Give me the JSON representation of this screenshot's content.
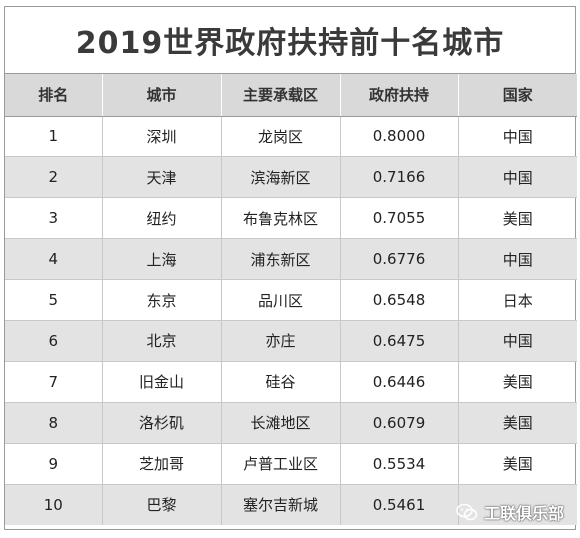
{
  "title": "2019世界政府扶持前十名城市",
  "headers": [
    "排名",
    "城市",
    "主要承载区",
    "政府扶持",
    "国家"
  ],
  "rows": [
    [
      "1",
      "深圳",
      "龙岗区",
      "0.8000",
      "中国"
    ],
    [
      "2",
      "天津",
      "滨海新区",
      "0.7166",
      "中国"
    ],
    [
      "3",
      "纽约",
      "布鲁克林区",
      "0.7055",
      "美国"
    ],
    [
      "4",
      "上海",
      "浦东新区",
      "0.6776",
      "中国"
    ],
    [
      "5",
      "东京",
      "品川区",
      "0.6548",
      "日本"
    ],
    [
      "6",
      "北京",
      "亦庄",
      "0.6475",
      "中国"
    ],
    [
      "7",
      "旧金山",
      "硅谷",
      "0.6446",
      "美国"
    ],
    [
      "8",
      "洛杉矶",
      "长滩地区",
      "0.6079",
      "美国"
    ],
    [
      "9",
      "芝加哥",
      "卢普工业区",
      "0.5534",
      "美国"
    ],
    [
      "10",
      "巴黎",
      "塞尔吉新城",
      "0.5461",
      ""
    ]
  ],
  "watermark": "工联俱乐部"
}
